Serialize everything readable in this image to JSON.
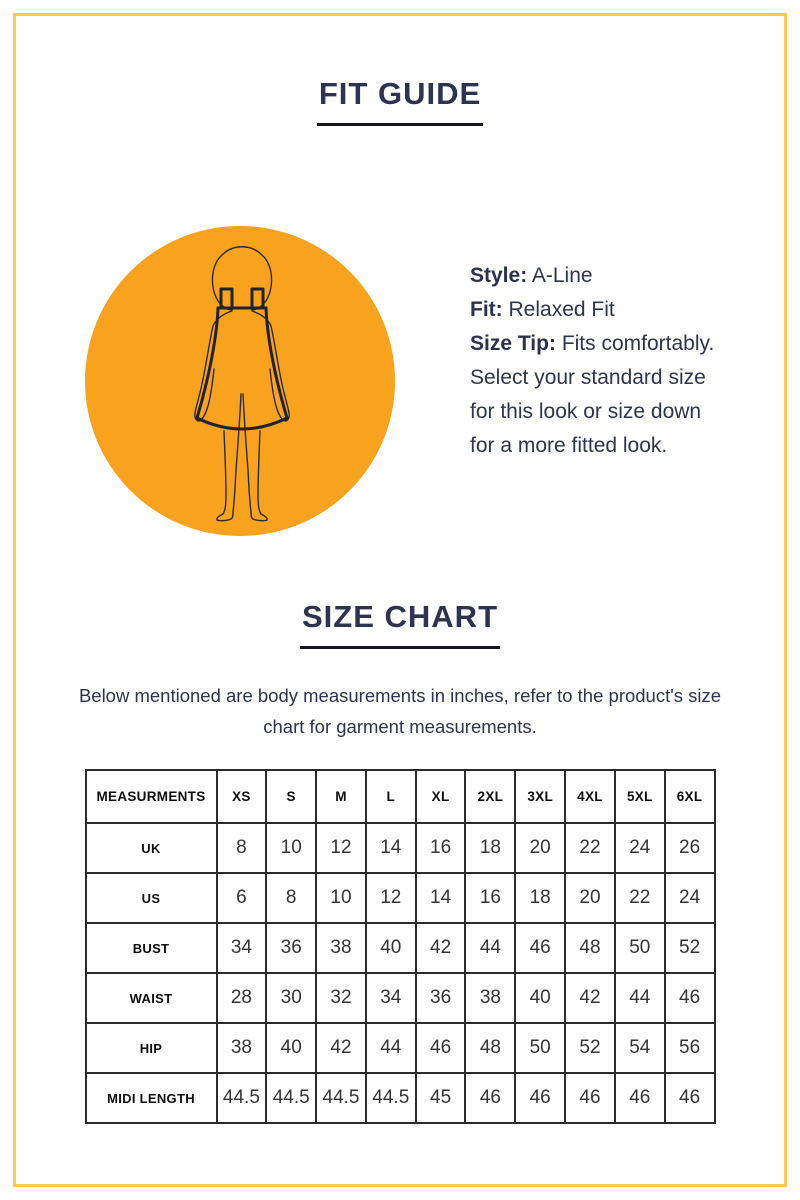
{
  "page": {
    "frame_border_color": "#FBCB4D",
    "background_color": "#FFFFFF",
    "heading_color": "#2E3450"
  },
  "fit_guide": {
    "title": "FIT GUIDE",
    "illustration": {
      "icon": "a-line-dress-figure-icon",
      "circle_color": "#F8A21E",
      "line_color": "#2B2B35"
    },
    "details": [
      {
        "label": "Style:",
        "value": "A-Line"
      },
      {
        "label": "Fit:",
        "value": "Relaxed Fit"
      },
      {
        "label": "Size Tip:",
        "value": "Fits comfortably. Select your standard size for this look or size down for a more fitted look."
      }
    ]
  },
  "size_chart": {
    "title": "SIZE CHART",
    "subtitle": "Below mentioned are body measurements in inches, refer to the product's size chart for garment measurements."
  },
  "chart_data": {
    "type": "table",
    "title": "SIZE CHART",
    "units": "inches",
    "headers": [
      "MEASURMENTS",
      "XS",
      "S",
      "M",
      "L",
      "XL",
      "2XL",
      "3XL",
      "4XL",
      "5XL",
      "6XL"
    ],
    "rows": [
      {
        "label": "UK",
        "values": [
          "8",
          "10",
          "12",
          "14",
          "16",
          "18",
          "20",
          "22",
          "24",
          "26"
        ]
      },
      {
        "label": "US",
        "values": [
          "6",
          "8",
          "10",
          "12",
          "14",
          "16",
          "18",
          "20",
          "22",
          "24"
        ]
      },
      {
        "label": "BUST",
        "values": [
          "34",
          "36",
          "38",
          "40",
          "42",
          "44",
          "46",
          "48",
          "50",
          "52"
        ]
      },
      {
        "label": "WAIST",
        "values": [
          "28",
          "30",
          "32",
          "34",
          "36",
          "38",
          "40",
          "42",
          "44",
          "46"
        ]
      },
      {
        "label": "HIP",
        "values": [
          "38",
          "40",
          "42",
          "44",
          "46",
          "48",
          "50",
          "52",
          "54",
          "56"
        ]
      },
      {
        "label": "MIDI LENGTH",
        "values": [
          "44.5",
          "44.5",
          "44.5",
          "44.5",
          "45",
          "46",
          "46",
          "46",
          "46",
          "46"
        ]
      }
    ]
  }
}
